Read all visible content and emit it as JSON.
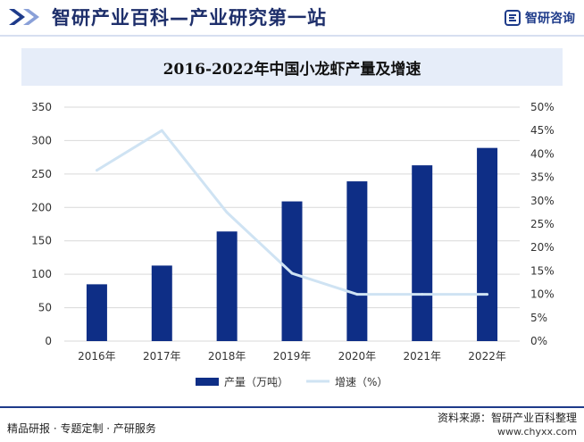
{
  "header": {
    "site_title": "智研产业百科—产业研究第一站",
    "logo_text": "智研咨询"
  },
  "chart_data": {
    "type": "bar",
    "title": "2016-2022年中国小龙虾产量及增速",
    "categories": [
      "2016年",
      "2017年",
      "2018年",
      "2019年",
      "2020年",
      "2021年",
      "2022年"
    ],
    "series": [
      {
        "name": "产量（万吨）",
        "type": "bar",
        "axis": "left",
        "color": "#0e2e86",
        "values": [
          85,
          113,
          164,
          209,
          239,
          263,
          289
        ]
      },
      {
        "name": "增速（%）",
        "type": "line",
        "axis": "right",
        "color": "#cfe3f3",
        "values": [
          36.5,
          45,
          27.5,
          14.5,
          10,
          10,
          10
        ]
      }
    ],
    "y_left": {
      "min": 0,
      "max": 350,
      "ticks": [
        "0",
        "50",
        "100",
        "150",
        "200",
        "250",
        "300",
        "350"
      ]
    },
    "y_right": {
      "min": 0,
      "max": 50,
      "ticks": [
        "0%",
        "5%",
        "10%",
        "15%",
        "20%",
        "25%",
        "30%",
        "35%",
        "40%",
        "45%",
        "50%"
      ]
    },
    "grid": true,
    "legend_position": "bottom"
  },
  "footer": {
    "tagline": "精品研报 · 专题定制 · 产研服务",
    "source": "资料来源：智研产业百科整理",
    "url": "www.chyxx.com"
  }
}
